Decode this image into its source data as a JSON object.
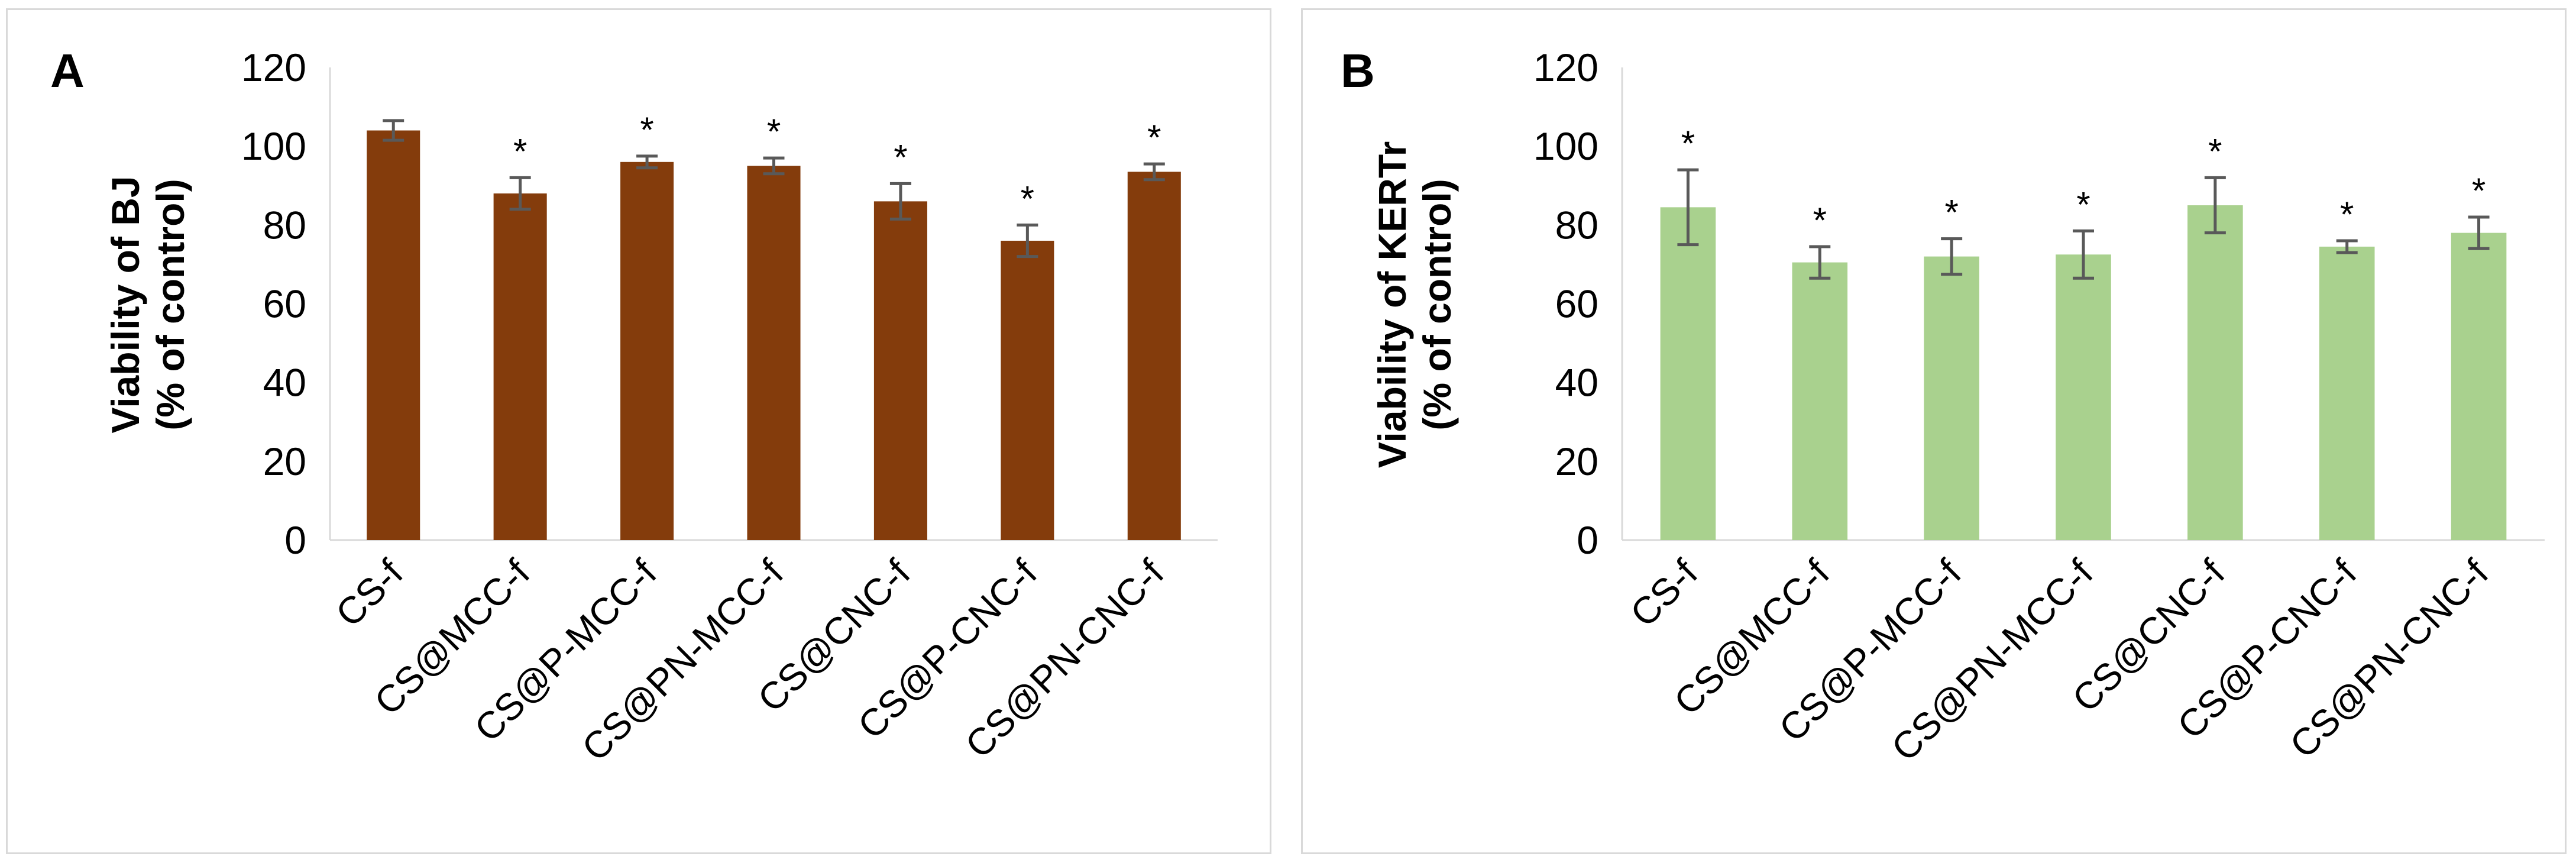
{
  "chart_data": [
    {
      "panel_label": "A",
      "type": "bar",
      "ylabel_lines": [
        "Viability of BJ",
        "(% of control)"
      ],
      "categories": [
        "CS-f",
        "CS@MCC-f",
        "CS@P-MCC-f",
        "CS@PN-MCC-f",
        "CS@CNC-f",
        "CS@P-CNC-f",
        "CS@PN-CNC-f"
      ],
      "values": [
        104,
        88,
        96,
        95,
        86,
        76,
        93.5
      ],
      "errors": [
        2.5,
        4,
        1.5,
        2,
        4.5,
        4,
        2
      ],
      "significance": [
        "",
        "*",
        "*",
        "*",
        "*",
        "*",
        "*"
      ],
      "ylim": [
        0,
        120
      ],
      "yticks": [
        0,
        20,
        40,
        60,
        80,
        100,
        120
      ],
      "bar_color": "#843C0C",
      "grid": false,
      "legend": "none"
    },
    {
      "panel_label": "B",
      "type": "bar",
      "ylabel_lines": [
        "Viability of KERTr",
        "(% of control)"
      ],
      "categories": [
        "CS-f",
        "CS@MCC-f",
        "CS@P-MCC-f",
        "CS@PN-MCC-f",
        "CS@CNC-f",
        "CS@P-CNC-f",
        "CS@PN-CNC-f"
      ],
      "values": [
        84.5,
        70.5,
        72,
        72.5,
        85,
        74.5,
        78
      ],
      "errors": [
        9.5,
        4,
        4.5,
        6,
        7,
        1.5,
        4
      ],
      "significance": [
        "*",
        "*",
        "*",
        "*",
        "*",
        "*",
        "*"
      ],
      "ylim": [
        0,
        120
      ],
      "yticks": [
        0,
        20,
        40,
        60,
        80,
        100,
        120
      ],
      "bar_color": "#A9D18E",
      "grid": false,
      "legend": "none"
    }
  ]
}
